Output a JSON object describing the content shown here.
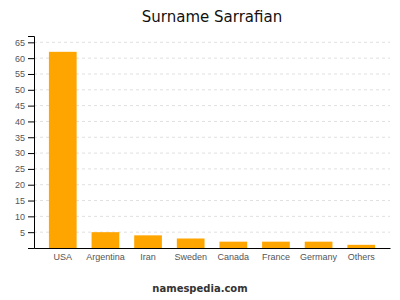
{
  "chart_data": {
    "type": "bar",
    "title": "Surname Sarrafian",
    "categories": [
      "USA",
      "Argentina",
      "Iran",
      "Sweden",
      "Canada",
      "France",
      "Germany",
      "Others"
    ],
    "values": [
      62,
      5,
      4,
      3,
      2,
      2,
      2,
      1
    ],
    "color": "#FFA500",
    "ylim": [
      0,
      67
    ],
    "yticks": [
      5,
      10,
      15,
      20,
      25,
      30,
      35,
      40,
      45,
      50,
      55,
      60,
      65
    ],
    "grid": true,
    "annotations": [
      "namespedia.com"
    ]
  }
}
